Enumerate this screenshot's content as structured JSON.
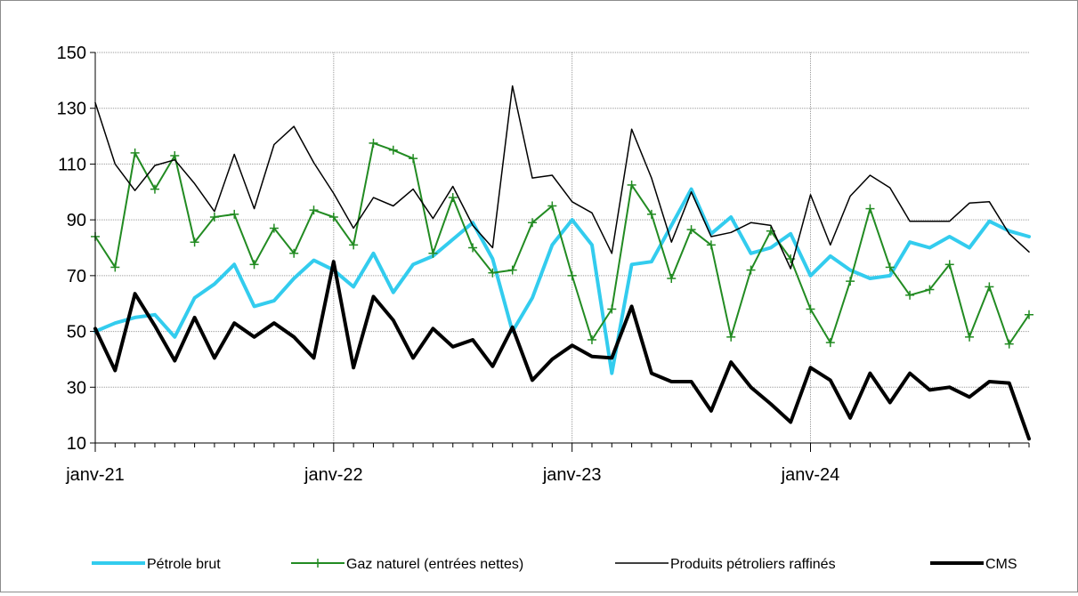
{
  "chart_data": {
    "type": "line",
    "title": "",
    "xlabel": "",
    "ylabel": "",
    "ylim": [
      10,
      150
    ],
    "yticks": [
      10,
      30,
      50,
      70,
      90,
      110,
      130,
      150
    ],
    "xtick_labels": [
      "janv-21",
      "janv-22",
      "janv-23",
      "janv-24"
    ],
    "xtick_index": [
      0,
      12,
      24,
      36
    ],
    "grid": true,
    "legend_position": "bottom",
    "x": [
      "janv-21",
      "févr-21",
      "mars-21",
      "avr-21",
      "mai-21",
      "juin-21",
      "juil-21",
      "août-21",
      "sept-21",
      "oct-21",
      "nov-21",
      "déc-21",
      "janv-22",
      "févr-22",
      "mars-22",
      "avr-22",
      "mai-22",
      "juin-22",
      "juil-22",
      "août-22",
      "sept-22",
      "oct-22",
      "nov-22",
      "déc-22",
      "janv-23",
      "févr-23",
      "mars-23",
      "avr-23",
      "mai-23",
      "juin-23",
      "juil-23",
      "août-23",
      "sept-23",
      "oct-23",
      "nov-23",
      "déc-23",
      "janv-24",
      "févr-24",
      "mars-24",
      "avr-24",
      "mai-24",
      "juin-24",
      "juil-24",
      "août-24",
      "sept-24",
      "oct-24",
      "nov-24",
      "déc-24"
    ],
    "series": [
      {
        "name": "Pétrole brut",
        "color": "#33ccee",
        "width": 4,
        "marker": "none",
        "values": [
          50,
          53,
          55,
          56,
          48,
          62,
          67,
          74,
          59,
          61,
          69,
          75.5,
          72,
          66,
          78,
          64,
          74,
          77,
          83,
          89,
          76,
          50,
          62,
          81,
          90,
          81,
          35,
          74,
          75,
          88,
          101,
          85,
          91,
          78,
          80,
          85,
          70,
          77,
          72,
          69,
          70,
          82,
          80,
          84,
          80,
          89.5,
          86,
          84
        ]
      },
      {
        "name": "Gaz naturel (entrées nettes)",
        "color": "#228b22",
        "width": 2,
        "marker": "plus",
        "values": [
          84,
          73,
          114,
          101,
          113,
          82,
          91,
          92,
          74,
          87,
          78,
          93.5,
          91,
          81,
          117.5,
          115,
          112,
          78,
          98,
          80,
          71,
          72,
          89,
          95,
          70,
          47,
          58,
          102.5,
          92,
          69,
          86.5,
          81,
          48,
          72,
          86,
          76,
          58,
          46,
          68,
          94,
          73,
          63,
          65,
          74,
          48,
          66,
          45.5,
          56
        ]
      },
      {
        "name": "Produits pétroliers raffinés",
        "color": "#000000",
        "width": 1.5,
        "marker": "none",
        "values": [
          132,
          110,
          100.5,
          109.5,
          111.5,
          103,
          93,
          113.5,
          94,
          117,
          123.5,
          110.5,
          99.5,
          87,
          98,
          95,
          101,
          90.5,
          102,
          88,
          80,
          138,
          105,
          106,
          96.5,
          92.5,
          78,
          122.5,
          105,
          82,
          100,
          84,
          85.5,
          89,
          88,
          72.5,
          99,
          81,
          98.5,
          106,
          101.5,
          89.5,
          89.5,
          89.5,
          96,
          96.5,
          85,
          78.5
        ]
      },
      {
        "name": "CMS",
        "color": "#000000",
        "width": 4,
        "marker": "none",
        "values": [
          51,
          36,
          63.5,
          52,
          39.5,
          55,
          40.5,
          53,
          48,
          53,
          48,
          40.5,
          75,
          37,
          62.5,
          54,
          40.5,
          51,
          44.5,
          47,
          37.5,
          51.5,
          32.5,
          40,
          45,
          41,
          40.5,
          59,
          35,
          32,
          32,
          21.5,
          39,
          30,
          24,
          17.5,
          37,
          32.5,
          19,
          35,
          24.5,
          35,
          29,
          30,
          26.5,
          32,
          31.5,
          11.5
        ]
      }
    ]
  }
}
